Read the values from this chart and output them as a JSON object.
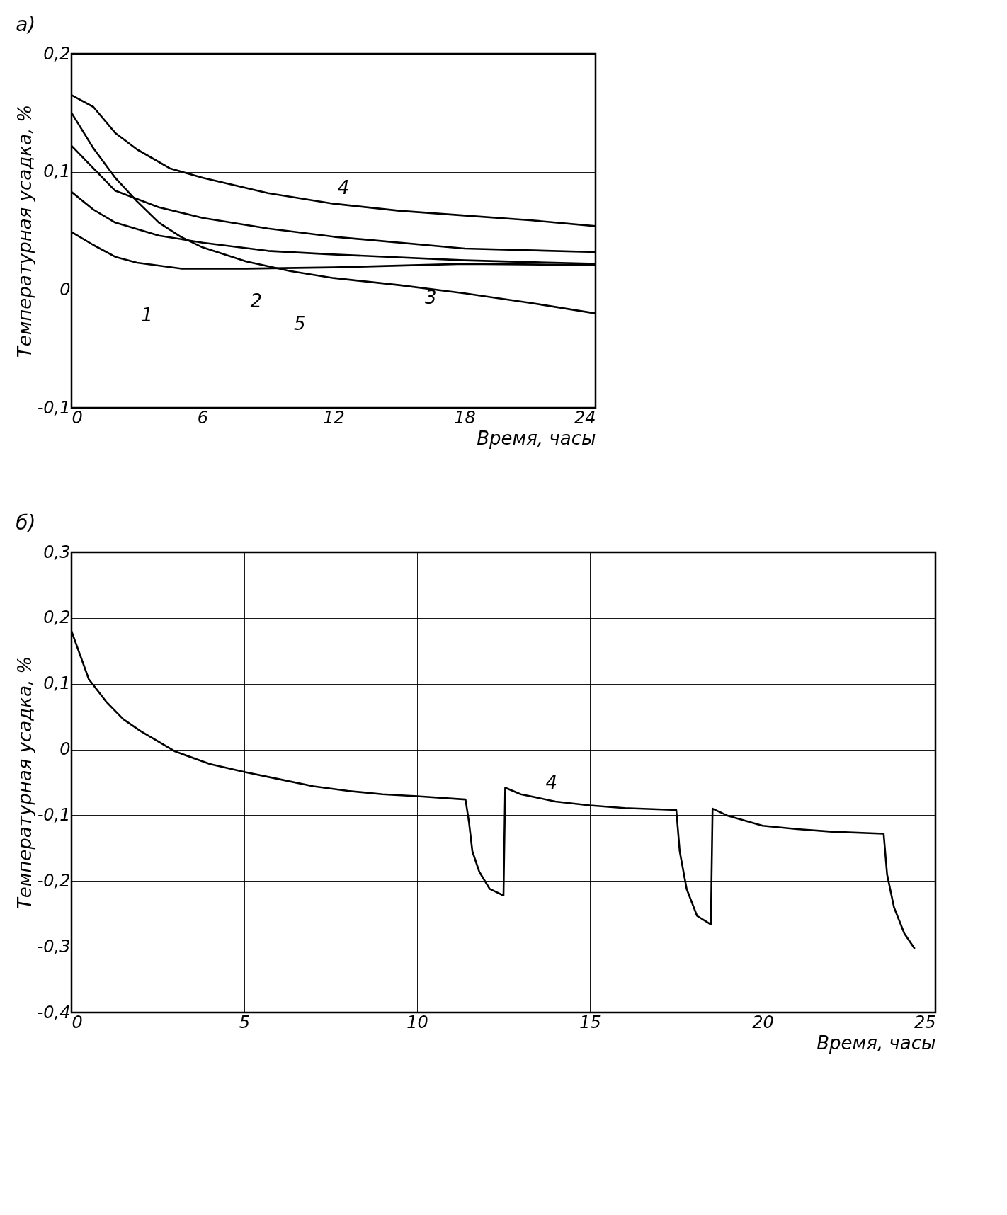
{
  "chart_data": [
    {
      "type": "line",
      "title": "а)",
      "xlabel": "Время, часы",
      "ylabel": "Температурная усадка, %",
      "xlim": [
        0,
        24
      ],
      "xticks": [
        {
          "value": 0,
          "label": "0"
        },
        6,
        12,
        18,
        24
      ],
      "ylim": [
        -0.1,
        0.2
      ],
      "yticks": [
        {
          "value": 0.2,
          "label": "0,2"
        },
        {
          "value": 0.1,
          "label": "0,1"
        },
        0,
        {
          "value": -0.1,
          "label": "-0,1"
        }
      ],
      "grid": true,
      "line_style": "solid",
      "series": [
        {
          "color": "#000000",
          "x": [
            0,
            1,
            2,
            3,
            5,
            8,
            12,
            18,
            24
          ],
          "values": [
            0.049,
            0.038,
            0.028,
            0.023,
            0.018,
            0.018,
            0.019,
            0.022,
            0.021
          ]
        },
        {
          "color": "#000000",
          "x": [
            0,
            1,
            2,
            4,
            6,
            9,
            12,
            18,
            24
          ],
          "values": [
            0.083,
            0.068,
            0.057,
            0.046,
            0.04,
            0.033,
            0.03,
            0.025,
            0.022
          ]
        },
        {
          "color": "#000000",
          "x": [
            0,
            2,
            4,
            6,
            9,
            12,
            18,
            24
          ],
          "values": [
            0.122,
            0.084,
            0.07,
            0.061,
            0.052,
            0.045,
            0.035,
            0.032
          ]
        },
        {
          "color": "#000000",
          "x": [
            0,
            1,
            2,
            3,
            4.5,
            6,
            9,
            12,
            15,
            18,
            21,
            24
          ],
          "values": [
            0.165,
            0.155,
            0.133,
            0.119,
            0.103,
            0.095,
            0.082,
            0.073,
            0.067,
            0.063,
            0.059,
            0.054
          ]
        },
        {
          "color": "#000000",
          "x": [
            0,
            1,
            2,
            3,
            4,
            5,
            6,
            8,
            10,
            12,
            15,
            18,
            21,
            24
          ],
          "values": [
            0.15,
            0.12,
            0.095,
            0.075,
            0.057,
            0.045,
            0.036,
            0.024,
            0.016,
            0.01,
            0.004,
            -0.003,
            -0.011,
            -0.02
          ]
        }
      ],
      "annotations": [
        {
          "text": "1",
          "x": 3,
          "y": 0.023
        },
        {
          "text": "2",
          "x": 8,
          "y": 0.035
        },
        {
          "text": "5",
          "x": 10,
          "y": 0.016
        },
        {
          "text": "4",
          "x": 12,
          "y": 0.073
        },
        {
          "text": "3",
          "x": 16,
          "y": 0.038
        }
      ]
    },
    {
      "type": "line",
      "title": "б)",
      "xlabel": "Время, часы",
      "ylabel": "Температурная усадка, %",
      "xlim": [
        0,
        25
      ],
      "xticks": [
        0,
        5,
        10,
        15,
        20,
        25
      ],
      "ylim": [
        -0.4,
        0.3
      ],
      "yticks": [
        {
          "value": 0.3,
          "label": "0,3"
        },
        {
          "value": 0.2,
          "label": "0,2"
        },
        {
          "value": 0.1,
          "label": "0,1"
        },
        0,
        {
          "value": -0.1,
          "label": "-0,1"
        },
        {
          "value": -0.2,
          "label": "-0,2"
        },
        {
          "value": -0.3,
          "label": "-0,3"
        },
        {
          "value": -0.4,
          "label": "-0,4"
        }
      ],
      "grid": true,
      "line_style": "solid",
      "series": [
        {
          "color": "#000000",
          "x": [
            0,
            0.5,
            1,
            1.5,
            2,
            3,
            4,
            5,
            6,
            7,
            8,
            9,
            10,
            11.4,
            11.5,
            11.6,
            11.8,
            12.1,
            12.5,
            12.55,
            13,
            14,
            15,
            16,
            17.5,
            17.6,
            17.8,
            18.1,
            18.5,
            18.55,
            19,
            20,
            21,
            22,
            23.5,
            23.6,
            23.8,
            24.1,
            24.4
          ],
          "values": [
            0.18,
            0.107,
            0.073,
            0.046,
            0.028,
            -0.003,
            -0.022,
            -0.034,
            -0.045,
            -0.056,
            -0.063,
            -0.068,
            -0.071,
            -0.076,
            -0.11,
            -0.155,
            -0.186,
            -0.212,
            -0.222,
            -0.058,
            -0.068,
            -0.079,
            -0.085,
            -0.089,
            -0.092,
            -0.155,
            -0.212,
            -0.253,
            -0.266,
            -0.09,
            -0.101,
            -0.116,
            -0.121,
            -0.125,
            -0.128,
            -0.19,
            -0.24,
            -0.28,
            -0.303
          ]
        }
      ],
      "annotations": [
        {
          "text": "4",
          "x": 13.6,
          "y": -0.075
        }
      ]
    }
  ]
}
